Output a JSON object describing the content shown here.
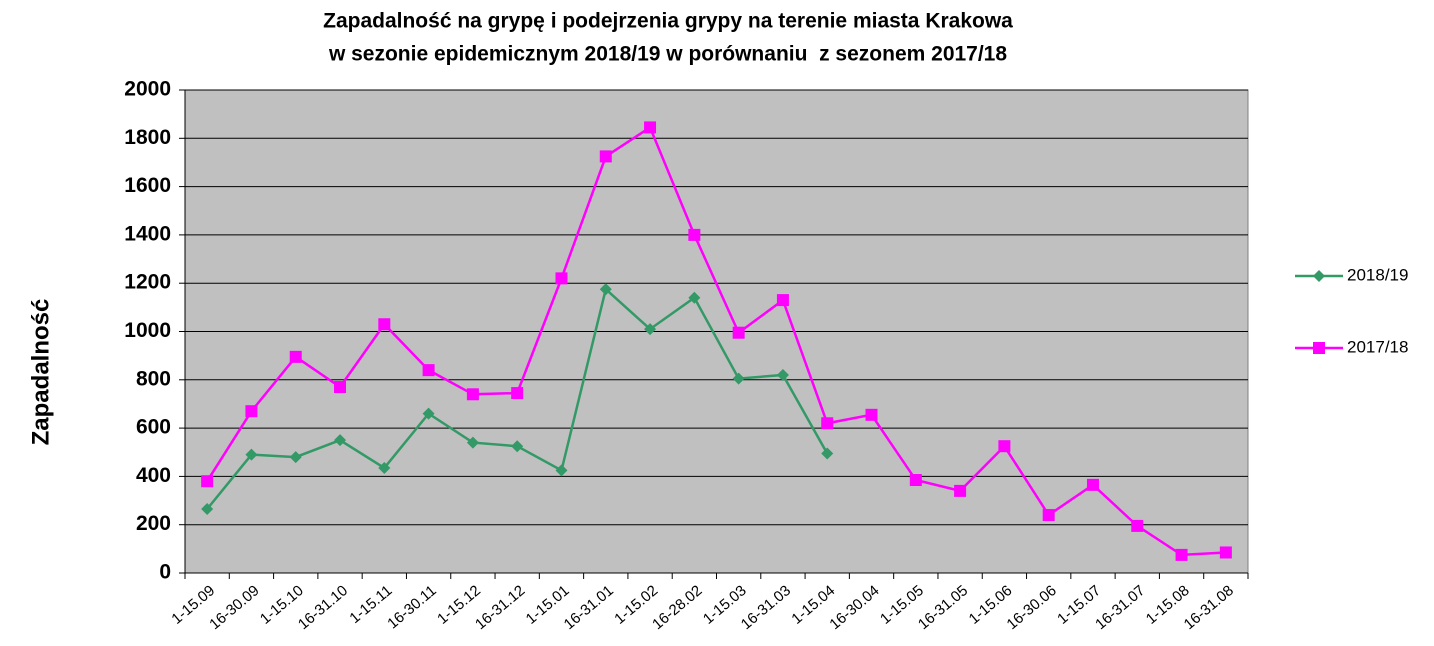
{
  "chart_data": {
    "type": "line",
    "title": [
      "Zapadalność na grypę i podejrzenia grypy na terenie miasta Krakowa",
      "w sezonie epidemicznym 2018/19 w porównaniu  z sezonem 2017/18"
    ],
    "y_label": "Zapadalność",
    "categories": [
      "1-15.09",
      "16-30.09",
      "1-15.10",
      "16-31.10",
      "1-15.11",
      "16-30.11",
      "1-15.12",
      "16-31.12",
      "1-15.01",
      "16-31.01",
      "1-15.02",
      "16-28.02",
      "1-15.03",
      "16-31.03",
      "1-15.04",
      "16-30.04",
      "1-15.05",
      "16-31.05",
      "1-15.06",
      "16-30.06",
      "1-15.07",
      "16-31.07",
      "1-15.08",
      "16-31.08"
    ],
    "series": [
      {
        "name": "2018/19",
        "color": "#339966",
        "marker": "diamond",
        "values": [
          265,
          490,
          480,
          550,
          435,
          660,
          540,
          525,
          425,
          1175,
          1010,
          1140,
          805,
          820,
          495,
          null,
          null,
          null,
          null,
          null,
          null,
          null,
          null,
          null
        ]
      },
      {
        "name": "2017/18",
        "color": "#ff00ff",
        "marker": "square",
        "values": [
          380,
          670,
          895,
          770,
          1030,
          840,
          740,
          745,
          1220,
          1725,
          1845,
          1400,
          995,
          1130,
          620,
          655,
          385,
          340,
          525,
          240,
          365,
          195,
          75,
          85
        ]
      }
    ],
    "ylim": [
      0,
      2000
    ],
    "yticks": [
      0,
      200,
      400,
      600,
      800,
      1000,
      1200,
      1400,
      1600,
      1800,
      2000
    ],
    "grid": true,
    "legend": "right",
    "background": "#c0c0c0"
  }
}
